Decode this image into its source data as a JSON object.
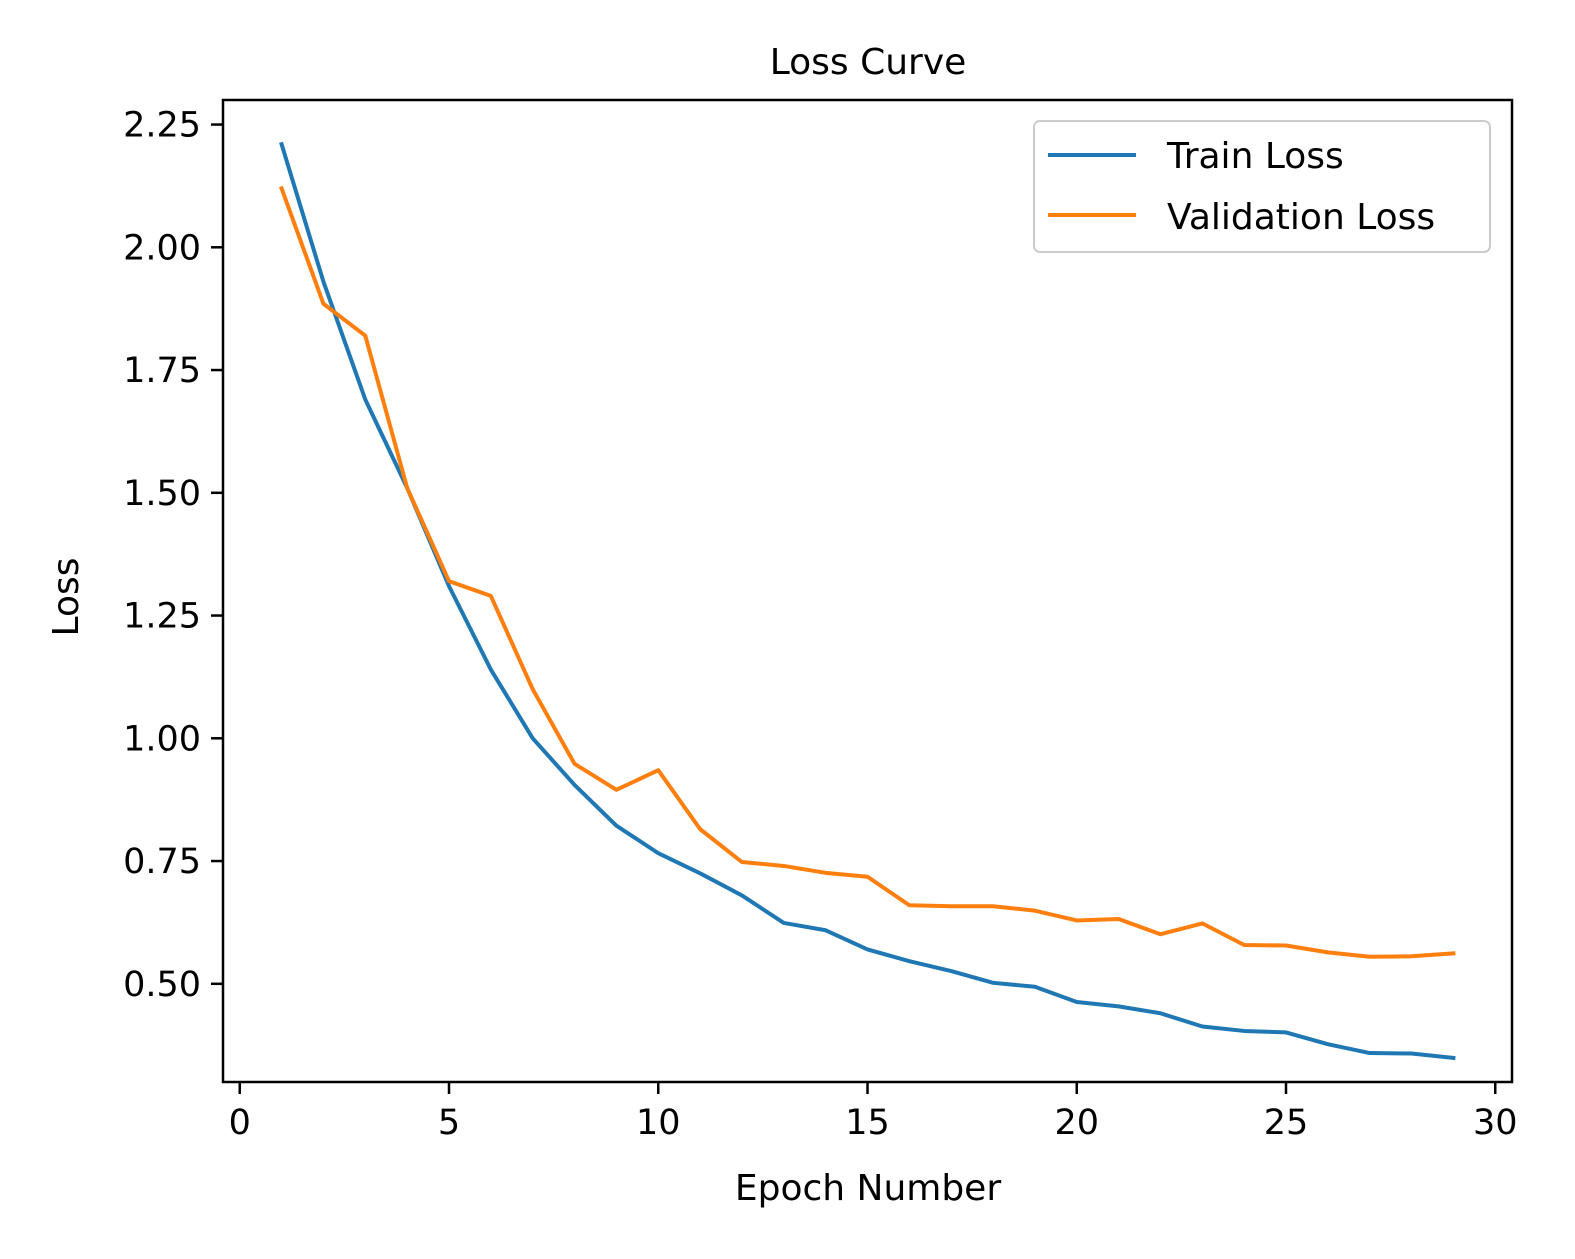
{
  "chart_data": {
    "type": "line",
    "title": "Loss Curve",
    "xlabel": "Epoch Number",
    "ylabel": "Loss",
    "xlim": [
      -0.4,
      30.4
    ],
    "ylim": [
      0.3,
      2.3
    ],
    "xticks": [
      0,
      5,
      10,
      15,
      20,
      25,
      30
    ],
    "xtick_labels": [
      "0",
      "5",
      "10",
      "15",
      "20",
      "25",
      "30"
    ],
    "yticks": [
      0.5,
      0.75,
      1.0,
      1.25,
      1.5,
      1.75,
      2.0,
      2.25
    ],
    "ytick_labels": [
      "0.50",
      "0.75",
      "1.00",
      "1.25",
      "1.50",
      "1.75",
      "2.00",
      "2.25"
    ],
    "grid": false,
    "legend_position": "top-right",
    "x": [
      1,
      2,
      3,
      4,
      5,
      6,
      7,
      8,
      9,
      10,
      11,
      12,
      13,
      14,
      15,
      16,
      17,
      18,
      19,
      20,
      21,
      22,
      23,
      24,
      25,
      26,
      27,
      28,
      29
    ],
    "series": [
      {
        "name": "Train Loss",
        "color": "#1f77b4",
        "values": [
          2.21,
          1.93,
          1.69,
          1.51,
          1.31,
          1.14,
          1.0,
          0.905,
          0.822,
          0.766,
          0.725,
          0.68,
          0.624,
          0.609,
          0.57,
          0.546,
          0.526,
          0.502,
          0.494,
          0.463,
          0.454,
          0.44,
          0.413,
          0.404,
          0.401,
          0.377,
          0.359,
          0.358,
          0.349
        ]
      },
      {
        "name": "Validation Loss",
        "color": "#ff7f0e",
        "values": [
          2.12,
          1.885,
          1.82,
          1.51,
          1.32,
          1.29,
          1.1,
          0.948,
          0.895,
          0.935,
          0.815,
          0.748,
          0.74,
          0.726,
          0.718,
          0.66,
          0.658,
          0.658,
          0.649,
          0.629,
          0.632,
          0.601,
          0.623,
          0.579,
          0.578,
          0.564,
          0.555,
          0.556,
          0.562
        ]
      }
    ]
  }
}
